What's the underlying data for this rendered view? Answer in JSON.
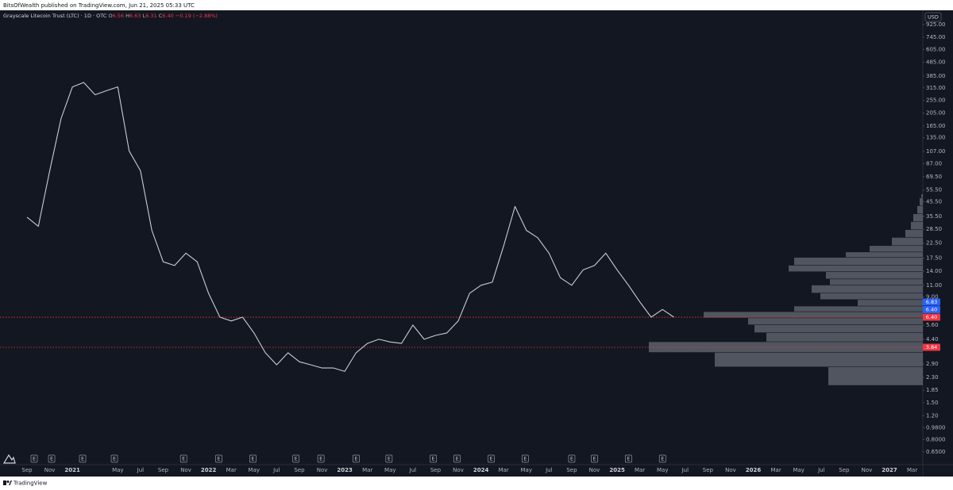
{
  "header": "BitsOfWealth published on TradingView.com, Jun 21, 2025 05:33 UTC",
  "footer": "TradingView",
  "chart_data": {
    "type": "line",
    "title": "Grayscale Litecoin Trust (LTC) · 1D · OTC",
    "ohlc_keys": [
      "O",
      "H",
      "L",
      "C"
    ],
    "ohlc_values": [
      6.56,
      6.63,
      6.31,
      {
        "value": 6.4,
        "label": "6.40"
      }
    ],
    "change": {
      "value": -0.19,
      "label": "−0.19"
    },
    "change_percent": {
      "value": -2.88,
      "label": "(−2.88%)"
    },
    "currency": "USD",
    "categories": [
      "Sep",
      null,
      "Nov",
      null,
      "2021",
      null,
      null,
      null,
      "May",
      null,
      "Jul",
      null,
      "Sep",
      null,
      "Nov",
      null,
      "2022",
      null,
      "Mar",
      null,
      "May",
      null,
      "Jul",
      null,
      "Sep",
      null,
      "Nov",
      null,
      "2023",
      null,
      "Mar",
      null,
      "May",
      null,
      "Jul",
      null,
      "Sep",
      null,
      "Nov",
      null,
      "2024",
      null,
      "Mar",
      null,
      "May",
      null,
      "Jul",
      null,
      "Sep",
      null,
      "Nov",
      null,
      "2025",
      null,
      "Mar",
      null,
      "May",
      null,
      "Jul",
      null,
      "Sep",
      null,
      "Nov",
      null,
      "2026",
      null,
      "Mar",
      null,
      "May",
      null,
      "Jul",
      null,
      "Sep",
      null,
      "Nov",
      null,
      "2027",
      null,
      "Mar"
    ],
    "values": [
      35,
      30,
      77,
      187,
      320,
      345,
      280,
      300,
      320,
      108,
      77,
      28,
      16.4,
      15.4,
      19,
      16.4,
      9.6,
      6.4,
      6.0,
      6.4,
      4.9,
      3.5,
      2.85,
      3.5,
      3.0,
      2.85,
      2.7,
      2.7,
      2.55,
      3.5,
      4.1,
      4.4,
      4.2,
      4.1,
      5.6,
      4.4,
      4.7,
      4.9,
      6.0,
      9.6,
      11,
      11.6,
      21.5,
      42,
      28,
      24.7,
      19,
      12.5,
      11,
      14.3,
      15.4,
      19,
      14.3,
      11,
      8.3,
      6.4,
      7.3,
      6.4,
      null,
      null,
      null,
      null,
      null,
      null,
      null,
      null,
      null,
      null,
      null,
      null,
      null,
      null,
      null,
      null,
      null,
      null,
      null,
      null,
      null
    ],
    "color": "#c9ccd4",
    "log_scale": true,
    "ylim": [
      0.53,
      1160
    ],
    "yticks": [
      {
        "value": 925,
        "label": "925.00"
      },
      {
        "value": 745,
        "label": "745.00"
      },
      {
        "value": 605,
        "label": "605.00"
      },
      {
        "value": 485,
        "label": "485.00"
      },
      {
        "value": 385,
        "label": "385.00"
      },
      {
        "value": 315,
        "label": "315.00"
      },
      {
        "value": 255,
        "label": "255.00"
      },
      {
        "value": 205,
        "label": "205.00"
      },
      {
        "value": 165,
        "label": "165.00"
      },
      {
        "value": 135,
        "label": "135.00"
      },
      {
        "value": 107,
        "label": "107.00"
      },
      {
        "value": 87,
        "label": "87.00"
      },
      {
        "value": 69.5,
        "label": "69.50"
      },
      {
        "value": 55.5,
        "label": "55.50"
      },
      {
        "value": 45.5,
        "label": "45.50"
      },
      {
        "value": 35.5,
        "label": "35.50"
      },
      {
        "value": 28.5,
        "label": "28.50"
      },
      {
        "value": 22.5,
        "label": "22.50"
      },
      {
        "value": 17.5,
        "label": "17.50"
      },
      {
        "value": 14,
        "label": "14.00"
      },
      {
        "value": 11,
        "label": "11.00"
      },
      {
        "value": 9,
        "label": "9.00"
      },
      {
        "value": 5.6,
        "label": "5.60"
      },
      {
        "value": 4.4,
        "label": "4.40"
      },
      {
        "value": 2.9,
        "label": "2.90"
      },
      {
        "value": 2.3,
        "label": "2.30"
      },
      {
        "value": 1.85,
        "label": "1.85"
      },
      {
        "value": 1.5,
        "label": "1.50"
      },
      {
        "value": 1.2,
        "label": "1.20"
      },
      {
        "value": 0.98,
        "label": "0.9800"
      },
      {
        "value": 0.8,
        "label": "0.8000"
      },
      {
        "value": 0.65,
        "label": "0.6500"
      }
    ],
    "price_labels": [
      {
        "value": 6.83,
        "color": "#2962ff"
      },
      {
        "value": 6.4,
        "label": "6.40",
        "color": "#2962ff"
      },
      {
        "value": 6.4,
        "label": "6.40",
        "color": "#f23645"
      },
      {
        "value": 3.84,
        "color": "#f23645"
      }
    ],
    "volume_profile": {
      "bins": [
        2.0,
        2.74,
        3.5,
        4.2,
        4.9,
        5.6,
        6.3,
        7.0,
        7.7,
        8.6,
        9.6,
        11.0,
        12.2,
        13.8,
        15.4,
        17.6,
        19.3,
        21.5,
        24.7,
        28.2,
        32.3,
        36.9,
        42.3,
        48.4,
        51.7
      ],
      "counts": [
        119,
        262,
        345,
        197,
        212,
        220,
        276,
        162,
        82,
        129,
        140,
        117,
        122,
        169,
        162,
        97,
        67,
        39,
        22,
        15,
        12,
        7,
        4,
        2
      ],
      "color": "#5d606b"
    },
    "earnings": {
      "label": "E",
      "x": [
        0.63,
        2.17,
        4.9,
        7.7,
        13.8,
        16.9,
        19.9,
        23.7,
        25.9,
        29.0,
        31.9,
        35.8,
        37.9,
        40.9,
        43.9,
        48.0,
        50.0,
        53.0,
        56.0
      ]
    }
  }
}
